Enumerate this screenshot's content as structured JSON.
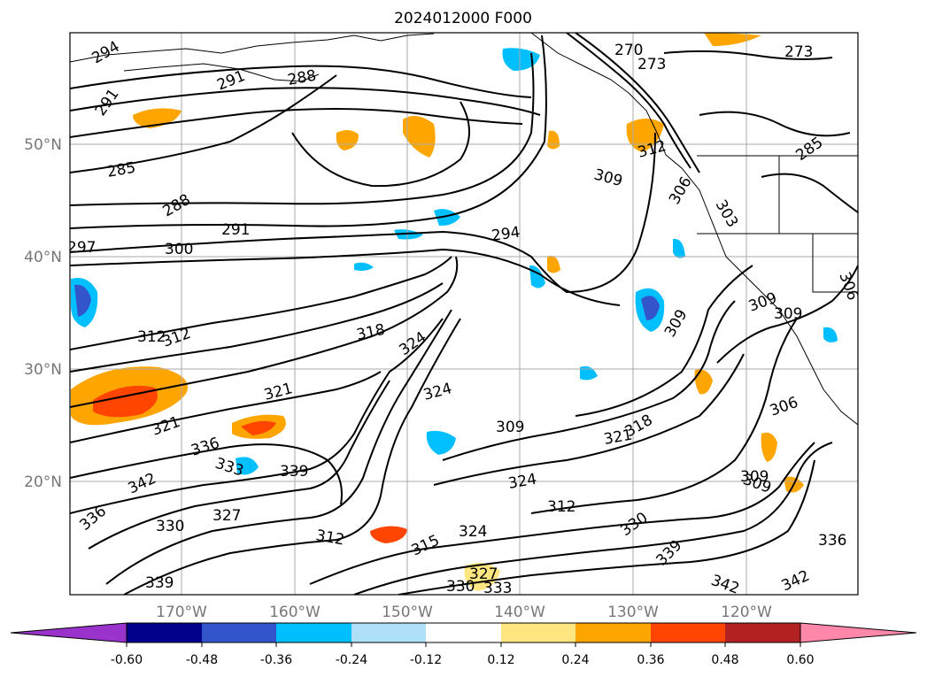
{
  "title": "2024012000 F000",
  "lat_labels": [
    "50°N",
    "40°N",
    "30°N",
    "20°N"
  ],
  "lon_labels": [
    "170°W",
    "160°W",
    "150°W",
    "140°W",
    "130°W",
    "120°W"
  ],
  "colorbar": {
    "ticks": [
      "-0.60",
      "-0.48",
      "-0.36",
      "-0.24",
      "-0.12",
      "0.12",
      "0.24",
      "0.36",
      "0.48",
      "0.60"
    ],
    "colors": [
      "#9933cc",
      "#00008b",
      "#3355cc",
      "#00bfff",
      "#aee0f7",
      "#ffffff",
      "#ffe680",
      "#ffa500",
      "#ff4500",
      "#b22222",
      "#ff88aa"
    ]
  },
  "contour_labels": [
    "294",
    "291",
    "291",
    "288",
    "270",
    "273",
    "273",
    "285",
    "288",
    "291",
    "297",
    "300",
    "294",
    "309",
    "312",
    "306",
    "303",
    "285",
    "312",
    "312",
    "318",
    "324",
    "321",
    "321",
    "324",
    "309",
    "321",
    "318",
    "336",
    "333",
    "339",
    "342",
    "336",
    "327",
    "330",
    "312",
    "315",
    "324",
    "309",
    "324",
    "312",
    "327",
    "330",
    "333",
    "339",
    "339",
    "342",
    "306",
    "309",
    "309",
    "309",
    "306",
    "309",
    "330",
    "336",
    "342"
  ]
}
